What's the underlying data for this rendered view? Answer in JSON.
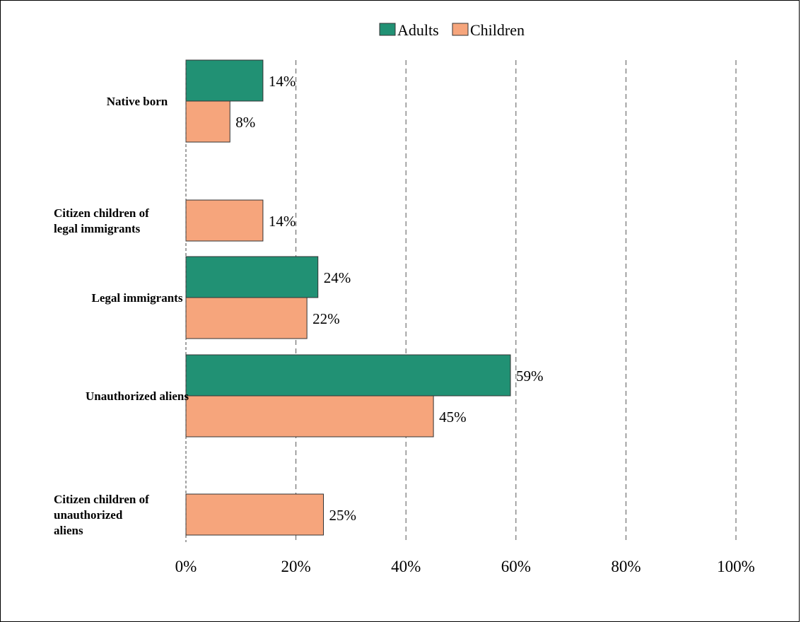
{
  "chart_data": {
    "type": "bar",
    "orientation": "horizontal",
    "categories": [
      [
        "Native born"
      ],
      [
        "Citizen children of",
        "legal immigrants"
      ],
      [
        "Legal immigrants"
      ],
      [
        "Unauthorized aliens"
      ],
      [
        "Citizen children of",
        "unauthorized",
        "aliens"
      ]
    ],
    "series": [
      {
        "name": "Adults",
        "color": "#219174",
        "values": [
          14,
          null,
          24,
          59,
          null
        ],
        "labels": [
          "14%",
          null,
          "24%",
          "59%",
          null
        ]
      },
      {
        "name": "Children",
        "color": "#f6a57c",
        "values": [
          8,
          14,
          22,
          45,
          25
        ],
        "labels": [
          "8%",
          "14%",
          "22%",
          "45%",
          "25%"
        ]
      }
    ],
    "xlim": [
      0,
      100
    ],
    "xticks": [
      0,
      20,
      40,
      60,
      80,
      100
    ],
    "xtick_labels": [
      "0%",
      "20%",
      "40%",
      "60%",
      "80%",
      "100%"
    ],
    "grid": "vertical dashed",
    "legend": "top-center",
    "title": "",
    "xlabel": "",
    "ylabel": ""
  }
}
